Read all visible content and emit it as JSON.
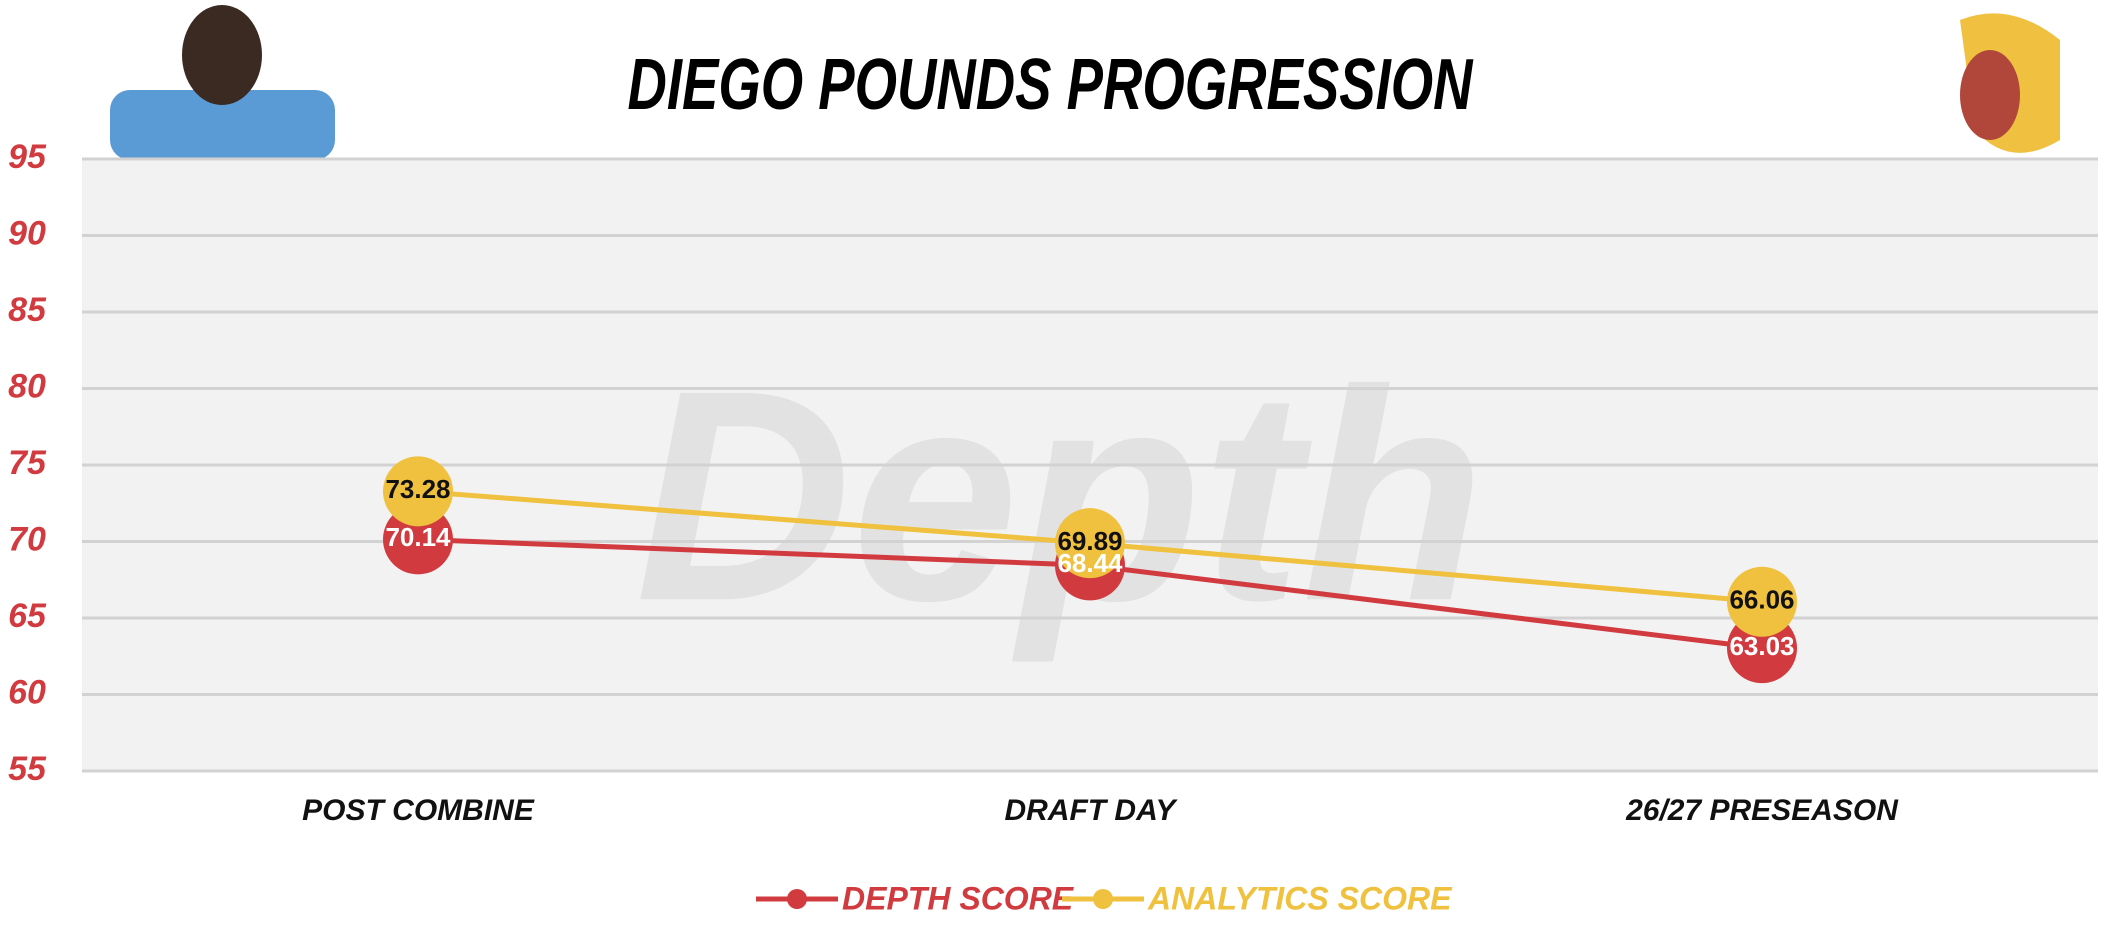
{
  "chart_data": {
    "type": "line",
    "title": "DIEGO POUNDS PROGRESSION",
    "watermark": "Depth",
    "categories": [
      "POST COMBINE",
      "DRAFT DAY",
      "26/27 PRESEASON"
    ],
    "series": [
      {
        "name": "DEPTH SCORE",
        "color": "#d13b3f",
        "values": [
          70.14,
          68.44,
          63.03
        ]
      },
      {
        "name": "ANALYTICS SCORE",
        "color": "#efc13f",
        "values": [
          73.28,
          69.89,
          66.06
        ]
      }
    ],
    "ylim": [
      55,
      95
    ],
    "yticks": [
      55,
      60,
      65,
      70,
      75,
      80,
      85,
      90,
      95
    ],
    "grid": true,
    "legend": "bottom"
  }
}
